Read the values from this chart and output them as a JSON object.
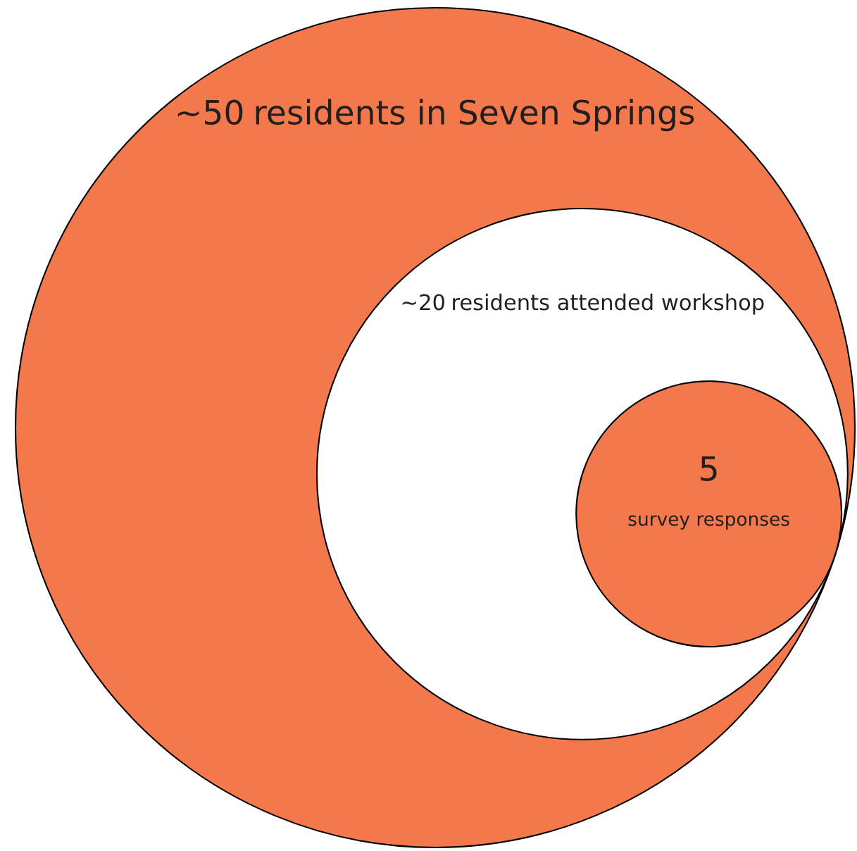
{
  "chart_data": {
    "type": "other",
    "categories": [
      "residents in Seven Springs",
      "residents attended workshop",
      "survey responses"
    ],
    "values": [
      50,
      20,
      5
    ],
    "value_labels": [
      "~50",
      "~20",
      "5"
    ],
    "colors": [
      "#f3794c",
      "#ffffff",
      "#f3794c"
    ]
  }
}
